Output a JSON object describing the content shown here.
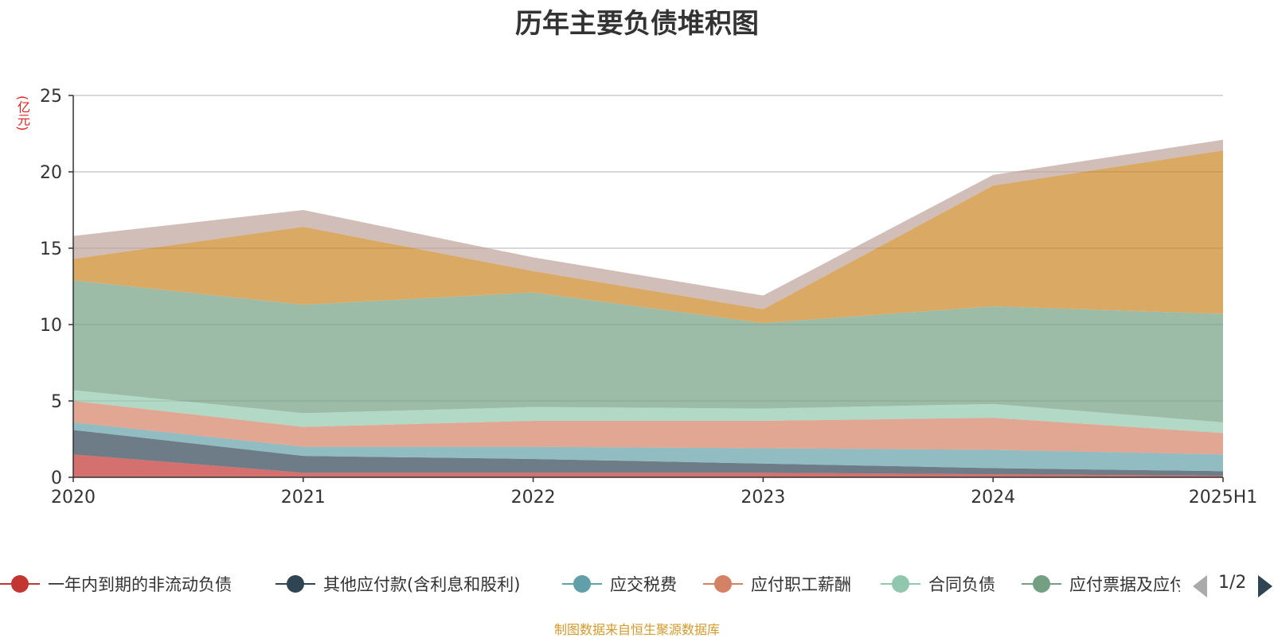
{
  "chart_data": {
    "type": "area",
    "title": "历年主要负债堆积图",
    "unit": "(亿元)",
    "stacked": true,
    "categories": [
      "2020",
      "2021",
      "2022",
      "2023",
      "2024",
      "2025H1"
    ],
    "ylim": [
      0,
      25
    ],
    "yticks": [
      0,
      5,
      10,
      15,
      20,
      25
    ],
    "grid": true,
    "series": [
      {
        "name": "一年内到期的非流动负债",
        "color": "#c23531",
        "values": [
          1.5,
          0.3,
          0.3,
          0.3,
          0.2,
          0.1
        ]
      },
      {
        "name": "其他应付款(含利息和股利)",
        "color": "#2f4554",
        "values": [
          1.6,
          1.1,
          0.9,
          0.6,
          0.4,
          0.3
        ]
      },
      {
        "name": "应交税费",
        "color": "#61a0a8",
        "values": [
          0.5,
          0.6,
          0.8,
          1.0,
          1.2,
          1.1
        ]
      },
      {
        "name": "应付职工薪酬",
        "color": "#d48265",
        "values": [
          1.4,
          1.3,
          1.7,
          1.8,
          2.1,
          1.4
        ]
      },
      {
        "name": "合同负债",
        "color": "#91c7ae",
        "values": [
          0.7,
          0.9,
          0.9,
          0.8,
          0.9,
          0.7
        ]
      },
      {
        "name": "应付票据及应付账款",
        "color": "#749f83",
        "values": [
          7.2,
          7.1,
          7.5,
          5.6,
          6.4,
          7.1
        ]
      },
      {
        "name": "",
        "color": "#ca8622",
        "values": [
          1.4,
          5.1,
          1.4,
          0.9,
          7.9,
          10.7
        ]
      },
      {
        "name": "",
        "color": "#bda29a",
        "values": [
          1.5,
          1.1,
          0.9,
          0.9,
          0.7,
          0.7
        ]
      }
    ]
  },
  "legend": {
    "items": [
      {
        "label": "一年内到期的非流动负债",
        "color": "#c23531"
      },
      {
        "label": "其他应付款(含利息和股利)",
        "color": "#2f4554"
      },
      {
        "label": "应交税费",
        "color": "#61a0a8"
      },
      {
        "label": "应付职工薪酬",
        "color": "#d48265"
      },
      {
        "label": "合同负债",
        "color": "#91c7ae"
      },
      {
        "label": "应付票据及应付账款",
        "color": "#749f83"
      }
    ],
    "page_text": "1/2"
  },
  "source_text": "制图数据来自恒生聚源数据库"
}
